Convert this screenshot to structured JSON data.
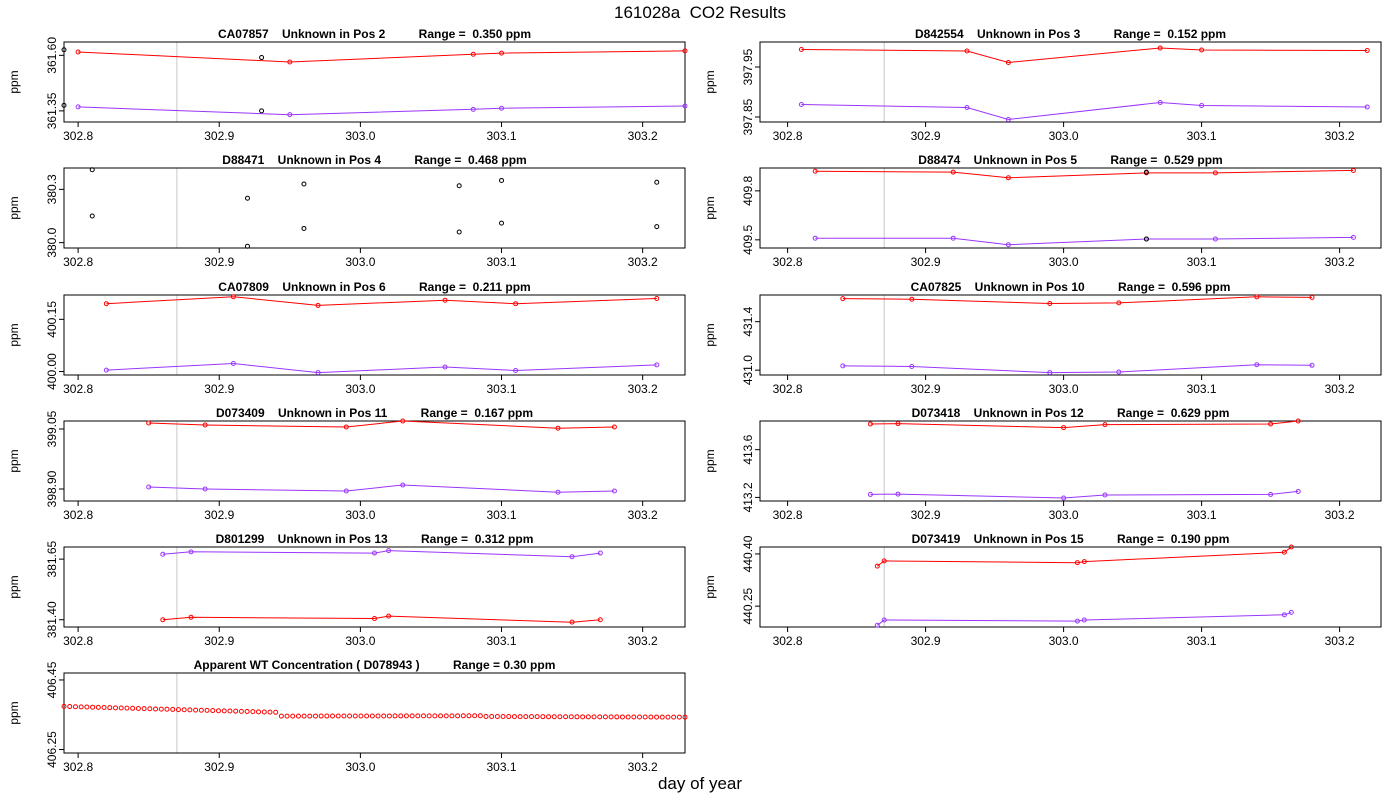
{
  "figure": {
    "title": "161028a  CO2 Results",
    "xlabel": "day of year"
  },
  "chart_data": [
    {
      "type": "line",
      "title": "CA07857    Unknown in Pos 2          Range =  0.350 ppm",
      "ylabel": "ppm",
      "xlim": [
        302.79,
        303.23
      ],
      "ylim": [
        361.3,
        361.66
      ],
      "xticks": [
        "302.8",
        "302.9",
        "303.0",
        "303.1",
        "303.2"
      ],
      "yticks": [
        "361.35",
        "361.60"
      ],
      "vlines": [
        302.87,
        303.23
      ],
      "series": [
        {
          "name": "upper",
          "color": "#ff0000",
          "x": [
            302.8,
            302.95,
            303.08,
            303.1,
            303.23
          ],
          "y": [
            361.615,
            361.57,
            361.605,
            361.61,
            361.62
          ]
        },
        {
          "name": "lower",
          "color": "#9a36ff",
          "x": [
            302.8,
            302.95,
            303.08,
            303.1,
            303.23
          ],
          "y": [
            361.368,
            361.333,
            361.357,
            361.362,
            361.372
          ]
        }
      ],
      "points": [
        {
          "x": 302.79,
          "y": 361.625
        },
        {
          "x": 302.93,
          "y": 361.59
        },
        {
          "x": 302.79,
          "y": 361.375
        },
        {
          "x": 302.93,
          "y": 361.35
        }
      ]
    },
    {
      "type": "line",
      "title": "D842554    Unknown in Pos 3          Range =  0.152 ppm",
      "ylabel": "ppm",
      "xlim": [
        302.78,
        303.23
      ],
      "ylim": [
        397.84,
        398.0
      ],
      "xticks": [
        "302.8",
        "302.9",
        "303.0",
        "303.1",
        "303.2"
      ],
      "yticks": [
        "397.85",
        "397.95"
      ],
      "vlines": [
        302.87,
        303.23
      ],
      "series": [
        {
          "name": "upper",
          "color": "#ff0000",
          "x": [
            302.81,
            302.93,
            302.96,
            303.07,
            303.1,
            303.22
          ],
          "y": [
            397.985,
            397.982,
            397.959,
            397.988,
            397.984,
            397.983
          ]
        },
        {
          "name": "lower",
          "color": "#9a36ff",
          "x": [
            302.81,
            302.93,
            302.96,
            303.07,
            303.1,
            303.22
          ],
          "y": [
            397.875,
            397.869,
            397.845,
            397.879,
            397.873,
            397.87
          ]
        }
      ],
      "points": []
    },
    {
      "type": "scatter",
      "title": "D88471    Unknown in Pos 4          Range =  0.468 ppm",
      "ylabel": "ppm",
      "xlim": [
        302.79,
        303.23
      ],
      "ylim": [
        379.97,
        380.42
      ],
      "xticks": [
        "302.8",
        "302.9",
        "303.0",
        "303.1",
        "303.2"
      ],
      "yticks": [
        "380.0",
        "380.3"
      ],
      "vlines": [
        302.87,
        303.23
      ],
      "series": [],
      "points": [
        {
          "x": 302.81,
          "y": 380.41
        },
        {
          "x": 302.92,
          "y": 380.25
        },
        {
          "x": 302.96,
          "y": 380.33
        },
        {
          "x": 303.07,
          "y": 380.32
        },
        {
          "x": 303.1,
          "y": 380.35
        },
        {
          "x": 303.21,
          "y": 380.34
        },
        {
          "x": 302.81,
          "y": 380.15
        },
        {
          "x": 302.92,
          "y": 379.98
        },
        {
          "x": 302.96,
          "y": 380.08
        },
        {
          "x": 303.07,
          "y": 380.06
        },
        {
          "x": 303.1,
          "y": 380.11
        },
        {
          "x": 303.21,
          "y": 380.09
        }
      ]
    },
    {
      "type": "line",
      "title": "D88474    Unknown in Pos 5          Range =  0.529 ppm",
      "ylabel": "ppm",
      "xlim": [
        302.78,
        303.23
      ],
      "ylim": [
        409.45,
        409.94
      ],
      "xticks": [
        "302.8",
        "302.9",
        "303.0",
        "303.1",
        "303.2"
      ],
      "yticks": [
        "409.5",
        "409.8"
      ],
      "vlines": [
        302.87,
        303.23
      ],
      "series": [
        {
          "name": "upper",
          "color": "#ff0000",
          "x": [
            302.82,
            302.92,
            302.96,
            303.06,
            303.11,
            303.21
          ],
          "y": [
            409.92,
            409.915,
            409.88,
            409.91,
            409.91,
            409.925
          ]
        },
        {
          "name": "lower",
          "color": "#9a36ff",
          "x": [
            302.82,
            302.92,
            302.96,
            303.06,
            303.11,
            303.21
          ],
          "y": [
            409.51,
            409.51,
            409.47,
            409.505,
            409.505,
            409.515
          ]
        }
      ],
      "points": [
        {
          "x": 303.06,
          "y": 409.915
        },
        {
          "x": 303.06,
          "y": 409.505
        }
      ]
    },
    {
      "type": "line",
      "title": "CA07809    Unknown in Pos 6          Range =  0.211 ppm",
      "ylabel": "ppm",
      "xlim": [
        302.79,
        303.23
      ],
      "ylim": [
        399.99,
        400.22
      ],
      "xticks": [
        "302.8",
        "302.9",
        "303.0",
        "303.1",
        "303.2"
      ],
      "yticks": [
        "400.00",
        "400.15"
      ],
      "vlines": [
        302.87,
        303.23
      ],
      "series": [
        {
          "name": "upper",
          "color": "#ff0000",
          "x": [
            302.82,
            302.91,
            302.97,
            303.06,
            303.11,
            303.21
          ],
          "y": [
            400.195,
            400.215,
            400.19,
            400.205,
            400.195,
            400.21
          ]
        },
        {
          "name": "lower",
          "color": "#9a36ff",
          "x": [
            302.82,
            302.91,
            302.97,
            303.06,
            303.11,
            303.21
          ],
          "y": [
            400.004,
            400.023,
            399.997,
            400.013,
            400.003,
            400.019
          ]
        }
      ],
      "points": []
    },
    {
      "type": "line",
      "title": "CA07825    Unknown in Pos 10          Range =  0.596 ppm",
      "ylabel": "ppm",
      "xlim": [
        302.78,
        303.23
      ],
      "ylim": [
        430.96,
        431.62
      ],
      "xticks": [
        "302.8",
        "302.9",
        "303.0",
        "303.1",
        "303.2"
      ],
      "yticks": [
        "431.0",
        "431.4"
      ],
      "vlines": [
        302.87,
        303.23
      ],
      "series": [
        {
          "name": "upper",
          "color": "#ff0000",
          "x": [
            302.84,
            302.89,
            302.99,
            303.04,
            303.14,
            303.18
          ],
          "y": [
            431.59,
            431.585,
            431.55,
            431.555,
            431.605,
            431.6
          ]
        },
        {
          "name": "lower",
          "color": "#9a36ff",
          "x": [
            302.84,
            302.89,
            302.99,
            303.04,
            303.14,
            303.18
          ],
          "y": [
            431.035,
            431.03,
            430.98,
            430.985,
            431.045,
            431.04
          ]
        }
      ],
      "points": []
    },
    {
      "type": "line",
      "title": "D073409    Unknown in Pos 11          Range =  0.167 ppm",
      "ylabel": "ppm",
      "xlim": [
        302.79,
        303.23
      ],
      "ylim": [
        398.87,
        399.07
      ],
      "xticks": [
        "302.8",
        "302.9",
        "303.0",
        "303.1",
        "303.2"
      ],
      "yticks": [
        "398.90",
        "399.05"
      ],
      "vlines": [
        302.87,
        303.23
      ],
      "series": [
        {
          "name": "upper",
          "color": "#ff0000",
          "x": [
            302.85,
            302.89,
            302.99,
            303.03,
            303.14,
            303.18
          ],
          "y": [
            399.065,
            399.06,
            399.055,
            399.07,
            399.052,
            399.055
          ]
        },
        {
          "name": "lower",
          "color": "#9a36ff",
          "x": [
            302.85,
            302.89,
            302.99,
            303.03,
            303.14,
            303.18
          ],
          "y": [
            398.905,
            398.9,
            398.895,
            398.91,
            398.892,
            398.895
          ]
        }
      ],
      "points": []
    },
    {
      "type": "line",
      "title": "D073418    Unknown in Pos 12          Range =  0.629 ppm",
      "ylabel": "ppm",
      "xlim": [
        302.78,
        303.23
      ],
      "ylim": [
        413.17,
        413.84
      ],
      "xticks": [
        "302.8",
        "302.9",
        "303.0",
        "303.1",
        "303.2"
      ],
      "yticks": [
        "413.2",
        "413.6"
      ],
      "vlines": [
        302.87,
        303.23
      ],
      "series": [
        {
          "name": "upper",
          "color": "#ff0000",
          "x": [
            302.86,
            302.88,
            303.0,
            303.03,
            303.15,
            303.17
          ],
          "y": [
            413.815,
            413.818,
            413.785,
            413.81,
            413.815,
            413.84
          ]
        },
        {
          "name": "lower",
          "color": "#9a36ff",
          "x": [
            302.86,
            302.88,
            303.0,
            303.03,
            303.15,
            303.17
          ],
          "y": [
            413.225,
            413.228,
            413.195,
            413.22,
            413.225,
            413.25
          ]
        }
      ],
      "points": []
    },
    {
      "type": "line",
      "title": "D801299    Unknown in Pos 13          Range =  0.312 ppm",
      "ylabel": "ppm",
      "xlim": [
        302.79,
        303.23
      ],
      "ylim": [
        381.37,
        381.7
      ],
      "xticks": [
        "302.8",
        "302.9",
        "303.0",
        "303.1",
        "303.2"
      ],
      "yticks": [
        "381.40",
        "381.65"
      ],
      "vlines": [
        302.87,
        303.23
      ],
      "series": [
        {
          "name": "upper",
          "color": "#9a36ff",
          "x": [
            302.86,
            302.88,
            303.01,
            303.02,
            303.15,
            303.17
          ],
          "y": [
            381.67,
            381.68,
            381.675,
            381.685,
            381.66,
            381.675
          ]
        },
        {
          "name": "lower",
          "color": "#ff0000",
          "x": [
            302.86,
            302.88,
            303.01,
            303.02,
            303.15,
            303.17
          ],
          "y": [
            381.4,
            381.41,
            381.405,
            381.415,
            381.39,
            381.4
          ]
        }
      ],
      "points": []
    },
    {
      "type": "line",
      "title": "D073419    Unknown in Pos 15          Range =  0.190 ppm",
      "ylabel": "ppm",
      "xlim": [
        302.78,
        303.23
      ],
      "ylim": [
        440.19,
        440.42
      ],
      "xticks": [
        "302.8",
        "302.9",
        "303.0",
        "303.1",
        "303.2"
      ],
      "yticks": [
        "440.25",
        "440.40"
      ],
      "vlines": [
        302.87,
        303.23
      ],
      "series": [
        {
          "name": "upper",
          "color": "#ff0000",
          "x": [
            302.865,
            302.87,
            303.01,
            303.015,
            303.16,
            303.165
          ],
          "y": [
            440.365,
            440.38,
            440.375,
            440.378,
            440.405,
            440.42
          ]
        },
        {
          "name": "lower",
          "color": "#9a36ff",
          "x": [
            302.865,
            302.87,
            303.01,
            303.015,
            303.16,
            303.165
          ],
          "y": [
            440.195,
            440.21,
            440.207,
            440.21,
            440.225,
            440.232
          ]
        }
      ],
      "points": []
    },
    {
      "type": "scatter",
      "title": "Apparent WT Concentration ( D078943 )          Range = 0.30 ppm",
      "ylabel": "ppm",
      "xlim": [
        302.79,
        303.23
      ],
      "ylim": [
        406.24,
        406.47
      ],
      "xticks": [
        "302.8",
        "302.9",
        "303.0",
        "303.1",
        "303.2"
      ],
      "yticks": [
        "406.25",
        "406.45"
      ],
      "vlines": [
        302.87,
        303.23
      ],
      "series": [],
      "points": [],
      "dots": {
        "color": "#ff0000",
        "segments": [
          {
            "x_start": 302.79,
            "x_end": 302.94,
            "n": 38,
            "y_start": 406.374,
            "y_end": 406.357
          },
          {
            "x_start": 302.944,
            "x_end": 303.085,
            "n": 36,
            "y_start": 406.346,
            "y_end": 406.347
          },
          {
            "x_start": 303.089,
            "x_end": 303.23,
            "n": 36,
            "y_start": 406.345,
            "y_end": 406.343
          }
        ]
      }
    }
  ]
}
